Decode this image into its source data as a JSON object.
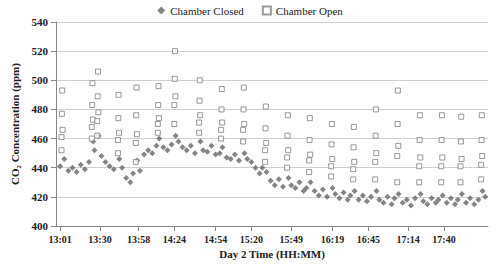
{
  "chart_data": {
    "type": "scatter",
    "x_label": "Day 2 Time (HH:MM)",
    "y_label": "CO₂ Concentration (ppm)",
    "xlim": [
      778,
      1092
    ],
    "xticks": [
      {
        "value": 781,
        "label": "13:01"
      },
      {
        "value": 810,
        "label": "13:30"
      },
      {
        "value": 838,
        "label": "13:58"
      },
      {
        "value": 864,
        "label": "14:24"
      },
      {
        "value": 894,
        "label": "14:54"
      },
      {
        "value": 920,
        "label": "15:20"
      },
      {
        "value": 949,
        "label": "15:49"
      },
      {
        "value": 979,
        "label": "16:19"
      },
      {
        "value": 1005,
        "label": "16:45"
      },
      {
        "value": 1034,
        "label": "17:14"
      },
      {
        "value": 1060,
        "label": "17:40"
      }
    ],
    "ylim": [
      400,
      540
    ],
    "yticks": [
      400,
      420,
      440,
      460,
      480,
      500,
      520,
      540
    ],
    "grid": true,
    "legend": "top",
    "series": [
      {
        "name": "Chamber Closed",
        "color": "#666666",
        "marker": "diamond",
        "x": [
          781,
          784,
          787,
          790,
          793,
          796,
          799,
          802,
          805,
          806,
          809,
          811,
          814,
          817,
          820,
          824,
          826,
          829,
          832,
          834,
          837,
          839,
          842,
          845,
          848,
          851,
          853,
          856,
          859,
          862,
          865,
          867,
          870,
          873,
          876,
          879,
          883,
          885,
          888,
          891,
          894,
          897,
          899,
          902,
          905,
          908,
          911,
          915,
          917,
          920,
          923,
          926,
          928,
          931,
          934,
          937,
          940,
          943,
          947,
          949,
          952,
          955,
          958,
          960,
          963,
          966,
          969,
          972,
          975,
          979,
          981,
          984,
          987,
          990,
          992,
          995,
          998,
          1001,
          1004,
          1007,
          1011,
          1013,
          1016,
          1019,
          1022,
          1024,
          1027,
          1030,
          1033,
          1036,
          1039,
          1043,
          1045,
          1048,
          1051,
          1054,
          1056,
          1059,
          1062,
          1065,
          1068,
          1070,
          1073,
          1076,
          1079,
          1082,
          1085,
          1088,
          1090
        ],
        "values": [
          441,
          446,
          438,
          440,
          437,
          442,
          439,
          444,
          458,
          452,
          462,
          448,
          444,
          441,
          439,
          446,
          440,
          433,
          430,
          436,
          445,
          438,
          449,
          452,
          450,
          455,
          460,
          454,
          452,
          456,
          462,
          458,
          454,
          452,
          455,
          450,
          458,
          452,
          451,
          455,
          449,
          450,
          454,
          447,
          446,
          449,
          445,
          450,
          446,
          444,
          440,
          436,
          440,
          437,
          431,
          428,
          432,
          427,
          433,
          428,
          426,
          430,
          424,
          426,
          430,
          424,
          421,
          425,
          420,
          426,
          422,
          419,
          423,
          418,
          421,
          424,
          418,
          421,
          417,
          420,
          424,
          418,
          416,
          420,
          415,
          419,
          422,
          416,
          418,
          414,
          419,
          422,
          417,
          415,
          419,
          416,
          418,
          421,
          416,
          419,
          415,
          418,
          422,
          416,
          419,
          415,
          418,
          424,
          420
        ]
      },
      {
        "name": "Chamber Open",
        "color": "#808080",
        "marker": "open_square",
        "x": [
          782,
          782,
          782.3,
          782.5,
          782.8,
          804,
          804,
          804.3,
          804.5,
          804.8,
          808,
          808,
          808.3,
          808.5,
          808.8,
          823,
          823,
          823.3,
          823.5,
          823.8,
          836,
          836,
          836.3,
          836.5,
          836.8,
          852,
          852,
          852.3,
          852.5,
          852.8,
          864,
          864,
          864.3,
          864.5,
          864.8,
          882,
          882,
          882.3,
          882.5,
          882.8,
          898,
          898,
          898.3,
          898.5,
          898.8,
          914,
          914,
          914.3,
          914.5,
          914.8,
          930,
          930,
          930.3,
          930.5,
          930.8,
          946,
          946,
          946.3,
          946.5,
          946.8,
          962,
          962,
          962.3,
          962.5,
          962.8,
          978,
          978,
          978.3,
          978.5,
          978.8,
          994,
          994,
          994.3,
          994.5,
          994.8,
          1010,
          1010,
          1010.3,
          1010.5,
          1010.8,
          1026,
          1026,
          1026.3,
          1026.5,
          1026.8,
          1042,
          1042,
          1042.3,
          1042.5,
          1042.8,
          1058,
          1058,
          1058.3,
          1058.5,
          1058.8,
          1072,
          1072,
          1072.3,
          1072.5,
          1072.8,
          1087,
          1087,
          1087.3,
          1087.5,
          1087.8
        ],
        "values": [
          452,
          461,
          477,
          493,
          466,
          460,
          468,
          483,
          498,
          473,
          462,
          472,
          489,
          506,
          478,
          450,
          459,
          474,
          490,
          464,
          444,
          457,
          476,
          495,
          463,
          464,
          470,
          483,
          496,
          474,
          470,
          483,
          501,
          520,
          489,
          464,
          471,
          486,
          500,
          476,
          460,
          466,
          480,
          494,
          471,
          458,
          466,
          480,
          495,
          470,
          444,
          452,
          467,
          482,
          457,
          440,
          447,
          462,
          476,
          452,
          437,
          445,
          459,
          474,
          449,
          434,
          441,
          456,
          470,
          446,
          432,
          439,
          454,
          468,
          444,
          432,
          444,
          462,
          480,
          450,
          430,
          448,
          470,
          493,
          455,
          430,
          441,
          459,
          476,
          447,
          430,
          441,
          459,
          476,
          447,
          430,
          441,
          458,
          475,
          446,
          432,
          442,
          459,
          476,
          448
        ]
      }
    ]
  }
}
